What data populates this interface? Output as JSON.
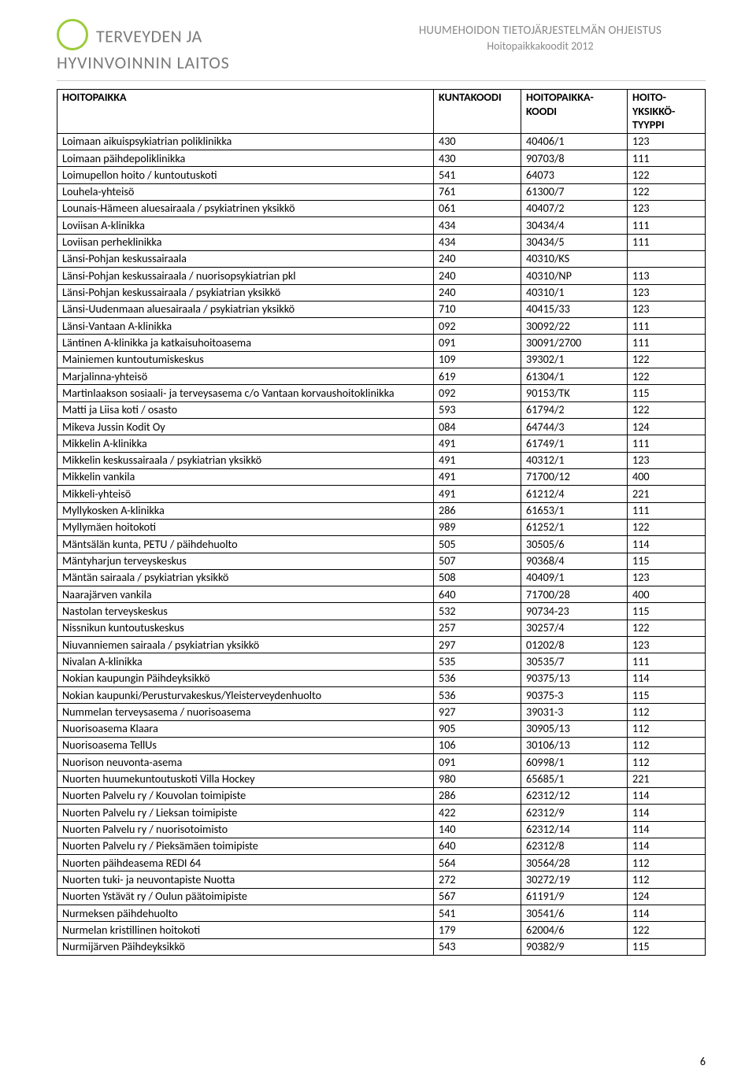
{
  "logo": {
    "line1": "TERVEYDEN JA",
    "line2": "HYVINVOINNIN LAITOS"
  },
  "doc": {
    "title1": "HUUMEHOIDON TIETOJÄRJESTELMÄN OHJEISTUS",
    "title2": "Hoitopaikkakoodit  2012"
  },
  "columns": [
    "HOITOPAIKKA",
    "KUNTAKOODI",
    "HOITOPAIKKA-KOODI",
    "HOITO-YKSIKKÖ-TYYPPI"
  ],
  "page_number": "6",
  "rows": [
    [
      "Loimaan aikuispsykiatrian poliklinikka",
      "430",
      "40406/1",
      "123"
    ],
    [
      "Loimaan päihdepoliklinikka",
      "430",
      "90703/8",
      "111"
    ],
    [
      "Loimupellon hoito / kuntoutuskoti",
      "541",
      "64073",
      "122"
    ],
    [
      "Louhela-yhteisö",
      "761",
      "61300/7",
      "122"
    ],
    [
      "Lounais-Hämeen aluesairaala / psykiatrinen yksikkö",
      "061",
      "40407/2",
      "123"
    ],
    [
      "Loviisan A-klinikka",
      "434",
      "30434/4",
      "111"
    ],
    [
      "Loviisan perheklinikka",
      "434",
      "30434/5",
      "111"
    ],
    [
      "Länsi-Pohjan keskussairaala",
      "240",
      "40310/KS",
      ""
    ],
    [
      "Länsi-Pohjan keskussairaala / nuorisopsykiatrian pkl",
      "240",
      "40310/NP",
      "113"
    ],
    [
      "Länsi-Pohjan keskussairaala / psykiatrian yksikkö",
      "240",
      "40310/1",
      "123"
    ],
    [
      "Länsi-Uudenmaan aluesairaala / psykiatrian yksikkö",
      "710",
      "40415/33",
      "123"
    ],
    [
      "Länsi-Vantaan A-klinikka",
      "092",
      "30092/22",
      "111"
    ],
    [
      "Läntinen A-klinikka ja katkaisuhoitoasema",
      "091",
      "30091/2700",
      "111"
    ],
    [
      "Mainiemen kuntoutumiskeskus",
      "109",
      "39302/1",
      "122"
    ],
    [
      "Marjalinna-yhteisö",
      "619",
      "61304/1",
      "122"
    ],
    [
      "Martinlaakson sosiaali- ja terveysasema c/o Vantaan korvaushoitoklinikka",
      "092",
      "90153/TK",
      "115"
    ],
    [
      "Matti ja Liisa koti / osasto",
      "593",
      "61794/2",
      "122"
    ],
    [
      "Mikeva Jussin Kodit Oy",
      "084",
      "64744/3",
      "124"
    ],
    [
      "Mikkelin A-klinikka",
      "491",
      "61749/1",
      "111"
    ],
    [
      "Mikkelin keskussairaala / psykiatrian yksikkö",
      "491",
      "40312/1",
      "123"
    ],
    [
      "Mikkelin vankila",
      "491",
      "71700/12",
      "400"
    ],
    [
      "Mikkeli-yhteisö",
      "491",
      "61212/4",
      "221"
    ],
    [
      "Myllykosken A-klinikka",
      "286",
      "61653/1",
      "111"
    ],
    [
      "Myllymäen hoitokoti",
      "989",
      "61252/1",
      "122"
    ],
    [
      "Mäntsälän kunta, PETU / päihdehuolto",
      "505",
      "30505/6",
      "114"
    ],
    [
      "Mäntyharjun terveyskeskus",
      "507",
      "90368/4",
      "115"
    ],
    [
      "Mäntän sairaala / psykiatrian yksikkö",
      "508",
      "40409/1",
      "123"
    ],
    [
      "Naarajärven vankila",
      "640",
      "71700/28",
      "400"
    ],
    [
      "Nastolan terveyskeskus",
      "532",
      "90734-23",
      "115"
    ],
    [
      "Nissnikun kuntoutuskeskus",
      "257",
      "30257/4",
      "122"
    ],
    [
      "Niuvanniemen sairaala / psykiatrian yksikkö",
      "297",
      "01202/8",
      "123"
    ],
    [
      "Nivalan A-klinikka",
      "535",
      "30535/7",
      "111"
    ],
    [
      "Nokian kaupungin Päihdeyksikkö",
      "536",
      "90375/13",
      "114"
    ],
    [
      "Nokian kaupunki/Perusturvakeskus/Yleisterveydenhuolto",
      "536",
      "90375-3",
      "115"
    ],
    [
      "Nummelan terveysasema / nuorisoasema",
      "927",
      "39031-3",
      "112"
    ],
    [
      "Nuorisoasema Klaara",
      "905",
      "30905/13",
      "112"
    ],
    [
      "Nuorisoasema TellUs",
      "106",
      "30106/13",
      "112"
    ],
    [
      "Nuorison neuvonta-asema",
      "091",
      "60998/1",
      "112"
    ],
    [
      "Nuorten huumekuntoutuskoti Villa Hockey",
      "980",
      "65685/1",
      "221"
    ],
    [
      "Nuorten Palvelu ry / Kouvolan toimipiste",
      "286",
      "62312/12",
      "114"
    ],
    [
      "Nuorten Palvelu ry / Lieksan toimipiste",
      "422",
      "62312/9",
      "114"
    ],
    [
      "Nuorten Palvelu ry / nuorisotoimisto",
      "140",
      "62312/14",
      "114"
    ],
    [
      "Nuorten Palvelu ry / Pieksämäen toimipiste",
      "640",
      "62312/8",
      "114"
    ],
    [
      "Nuorten päihdeasema REDI 64",
      "564",
      "30564/28",
      "112"
    ],
    [
      "Nuorten tuki- ja neuvontapiste Nuotta",
      "272",
      "30272/19",
      "112"
    ],
    [
      "Nuorten Ystävät ry / Oulun päätoimipiste",
      "567",
      "61191/9",
      "124"
    ],
    [
      "Nurmeksen päihdehuolto",
      "541",
      "30541/6",
      "114"
    ],
    [
      "Nurmelan kristillinen hoitokoti",
      "179",
      "62004/6",
      "122"
    ],
    [
      "Nurmijärven Päihdeyksikkö",
      "543",
      "90382/9",
      "115"
    ]
  ]
}
